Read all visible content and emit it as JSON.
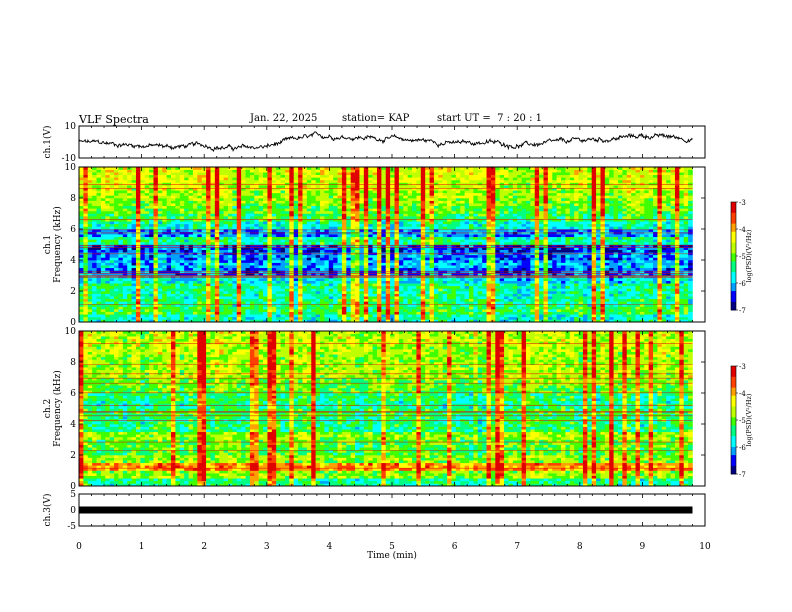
{
  "header": {
    "title": "VLF Spectra",
    "date": "Jan. 22, 2025",
    "station": "station= KAP",
    "start": "start UT =  7 : 20 : 1"
  },
  "chart_data": [
    {
      "type": "line",
      "panel": "ch1-waveform",
      "ylabel": "ch.1(V)",
      "ylim": [
        -10,
        10
      ],
      "y_ticks": [
        "10",
        "-10"
      ],
      "x_range_min": [
        0,
        9.8
      ],
      "series_trend": [
        {
          "x": 0,
          "y": 0
        },
        {
          "x": 0.5,
          "y": -1
        },
        {
          "x": 1,
          "y": -2
        },
        {
          "x": 1.5,
          "y": -3
        },
        {
          "x": 2,
          "y": -2
        },
        {
          "x": 2.5,
          "y": -4
        },
        {
          "x": 3,
          "y": -3
        },
        {
          "x": 3.5,
          "y": 2
        },
        {
          "x": 4,
          "y": 4
        },
        {
          "x": 4.5,
          "y": 3
        },
        {
          "x": 5,
          "y": 2
        },
        {
          "x": 5.5,
          "y": 1
        },
        {
          "x": 6,
          "y": -1
        },
        {
          "x": 6.5,
          "y": 0
        },
        {
          "x": 7,
          "y": -2
        },
        {
          "x": 7.5,
          "y": -1
        },
        {
          "x": 8,
          "y": 1
        },
        {
          "x": 8.5,
          "y": 2
        },
        {
          "x": 9,
          "y": 4
        },
        {
          "x": 9.5,
          "y": 3
        },
        {
          "x": 9.8,
          "y": 2
        }
      ]
    },
    {
      "type": "heatmap",
      "panel": "ch1-spectrogram",
      "ylabel": "ch.1\nFrequency (kHz)",
      "ylim": [
        0,
        10
      ],
      "y_ticks": [
        "0",
        "2",
        "4",
        "6",
        "8",
        "10"
      ],
      "x_range_min": [
        0,
        9.8
      ],
      "colorbar": {
        "label": "log(PSD)(V²/Hz)",
        "range": [
          -7,
          -3
        ],
        "ticks": [
          "-3",
          "-4",
          "-5",
          "-6",
          "-7"
        ]
      },
      "band_levels_by_khz": [
        {
          "f": 0.25,
          "level": 0.35
        },
        {
          "f": 0.75,
          "level": 0.45
        },
        {
          "f": 1.25,
          "level": 0.42
        },
        {
          "f": 1.75,
          "level": 0.38
        },
        {
          "f": 2.25,
          "level": 0.4
        },
        {
          "f": 2.75,
          "level": 0.3
        },
        {
          "f": 3.25,
          "level": 0.18
        },
        {
          "f": 3.75,
          "level": 0.25
        },
        {
          "f": 4.25,
          "level": 0.2
        },
        {
          "f": 4.75,
          "level": 0.15
        },
        {
          "f": 5.25,
          "level": 0.4
        },
        {
          "f": 5.75,
          "level": 0.22
        },
        {
          "f": 6.25,
          "level": 0.35
        },
        {
          "f": 6.75,
          "level": 0.45
        },
        {
          "f": 7.25,
          "level": 0.5
        },
        {
          "f": 7.75,
          "level": 0.55
        },
        {
          "f": 8.25,
          "level": 0.58
        },
        {
          "f": 8.75,
          "level": 0.6
        },
        {
          "f": 9.25,
          "level": 0.62
        },
        {
          "f": 9.75,
          "level": 0.62
        }
      ]
    },
    {
      "type": "heatmap",
      "panel": "ch2-spectrogram",
      "ylabel": "ch.2\nFrequency (kHz)",
      "ylim": [
        0,
        10
      ],
      "y_ticks": [
        "0",
        "2",
        "4",
        "6",
        "8",
        "10"
      ],
      "x_range_min": [
        0,
        9.8
      ],
      "colorbar": {
        "label": "log(PSD)(V²/Hz)",
        "range": [
          -7,
          -3
        ],
        "ticks": [
          "-3",
          "-4",
          "-5",
          "-6",
          "-7"
        ]
      },
      "band_levels_by_khz": [
        {
          "f": 0.25,
          "level": 0.4
        },
        {
          "f": 0.75,
          "level": 0.55
        },
        {
          "f": 1.25,
          "level": 0.78
        },
        {
          "f": 1.75,
          "level": 0.55
        },
        {
          "f": 2.25,
          "level": 0.48
        },
        {
          "f": 2.75,
          "level": 0.5
        },
        {
          "f": 3.25,
          "level": 0.56
        },
        {
          "f": 3.75,
          "level": 0.42
        },
        {
          "f": 4.25,
          "level": 0.42
        },
        {
          "f": 4.75,
          "level": 0.45
        },
        {
          "f": 5.25,
          "level": 0.4
        },
        {
          "f": 5.75,
          "level": 0.42
        },
        {
          "f": 6.25,
          "level": 0.5
        },
        {
          "f": 6.75,
          "level": 0.52
        },
        {
          "f": 7.25,
          "level": 0.58
        },
        {
          "f": 7.75,
          "level": 0.58
        },
        {
          "f": 8.25,
          "level": 0.56
        },
        {
          "f": 8.75,
          "level": 0.58
        },
        {
          "f": 9.25,
          "level": 0.6
        },
        {
          "f": 9.75,
          "level": 0.6
        }
      ]
    },
    {
      "type": "line",
      "panel": "ch3-waveform",
      "ylabel": "ch.3(V)",
      "ylim": [
        -5,
        5
      ],
      "y_ticks": [
        "5",
        "0",
        "-5"
      ],
      "x_range_min": [
        0,
        9.8
      ],
      "series_trend": [
        {
          "x": 0,
          "y": 0
        },
        {
          "x": 9.8,
          "y": 0
        }
      ]
    }
  ],
  "x_axis": {
    "label": "Time (min)",
    "ticks": [
      "0",
      "1",
      "2",
      "3",
      "4",
      "5",
      "6",
      "7",
      "8",
      "9",
      "10"
    ],
    "range": [
      0,
      10
    ]
  },
  "colors": {
    "palette": [
      "#000080",
      "#0000ff",
      "#00a0ff",
      "#00ffff",
      "#00ff80",
      "#40ff00",
      "#c0ff00",
      "#ffff00",
      "#ffa000",
      "#ff4000",
      "#e00000"
    ]
  }
}
